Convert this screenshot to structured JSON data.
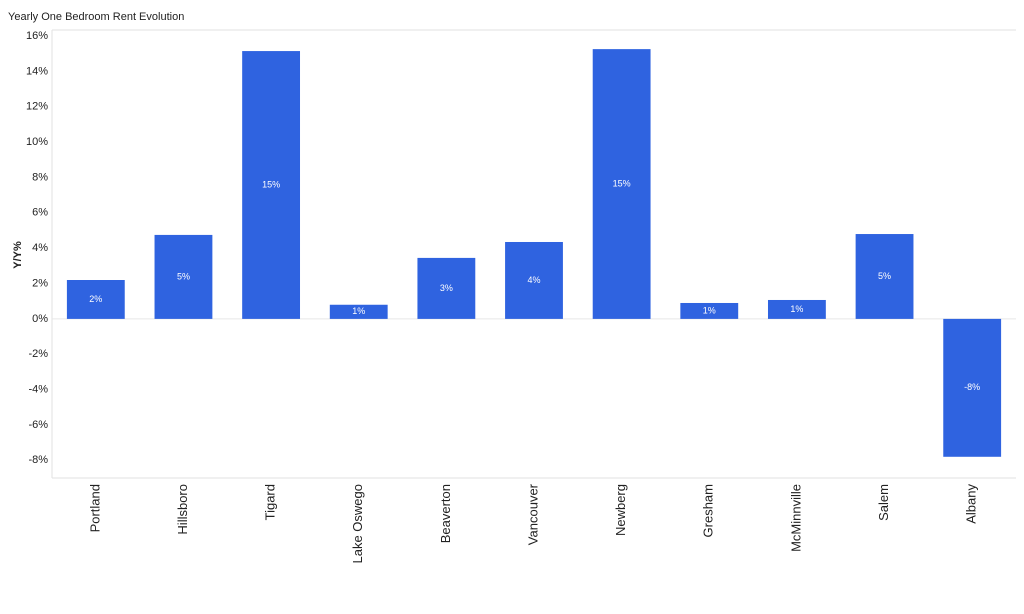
{
  "chart_data": {
    "type": "bar",
    "title": "Yearly One Bedroom Rent Evolution",
    "y_label": "Y/Y%",
    "categories": [
      "Portland",
      "Hillsboro",
      "Tigard",
      "Lake Oswego",
      "Beaverton",
      "Vancouver",
      "Newberg",
      "Gresham",
      "McMinnville",
      "Salem",
      "Albany"
    ],
    "values": [
      2.2,
      4.75,
      15.15,
      0.8,
      3.45,
      4.35,
      15.26,
      0.9,
      1.07,
      4.8,
      -7.8
    ],
    "value_labels": [
      "2%",
      "5%",
      "15%",
      "1%",
      "3%",
      "4%",
      "15%",
      "1%",
      "1%",
      "5%",
      "-8%"
    ],
    "color": "#2f63e0",
    "ylim": [
      -9,
      16.5
    ],
    "yticks": [
      {
        "value": -8,
        "label": "-8%"
      },
      {
        "value": -6,
        "label": "-6%"
      },
      {
        "value": -4,
        "label": "-4%"
      },
      {
        "value": -2,
        "label": "-2%"
      },
      {
        "value": 0,
        "label": "0%"
      },
      {
        "value": 2,
        "label": "2%"
      },
      {
        "value": 4,
        "label": "4%"
      },
      {
        "value": 6,
        "label": "6%"
      },
      {
        "value": 8,
        "label": "8%"
      },
      {
        "value": 10,
        "label": "10%"
      },
      {
        "value": 12,
        "label": "12%"
      },
      {
        "value": 14,
        "label": "14%"
      },
      {
        "value": 16,
        "label": "16%"
      }
    ],
    "grid": false
  }
}
